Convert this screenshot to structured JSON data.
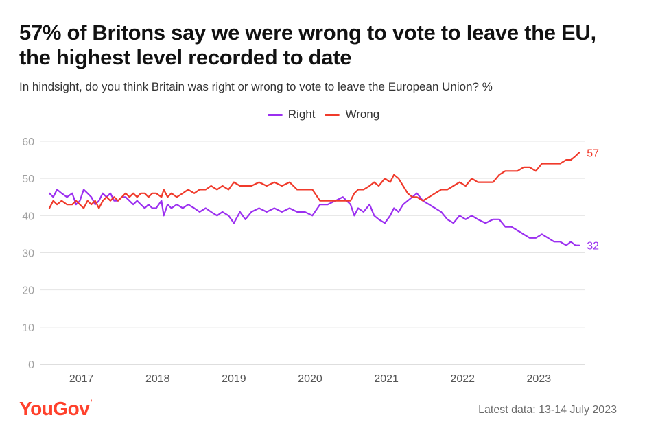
{
  "header": {
    "title": "57% of Britons say we were wrong to vote to leave the EU, the highest level recorded to date",
    "subtitle": "In hindsight, do you think Britain was right or wrong to vote to leave the European Union? %"
  },
  "legend": {
    "right_label": "Right",
    "wrong_label": "Wrong"
  },
  "colors": {
    "right": "#9b2ff0",
    "wrong": "#f03a2b",
    "grid": "#e4e4e4",
    "axis_text": "#a0a0a0"
  },
  "footer": {
    "brand": "YouGov",
    "latest": "Latest data: 13-14 July 2023"
  },
  "chart_data": {
    "type": "line",
    "title": "57% of Britons say we were wrong to vote to leave the EU, the highest level recorded to date",
    "xlabel": "",
    "ylabel": "%",
    "xlim": [
      2016.6,
      2023.62
    ],
    "ylim": [
      0,
      60
    ],
    "yticks": [
      0,
      10,
      20,
      30,
      40,
      50,
      60
    ],
    "xticks": [
      2017,
      2018,
      2019,
      2020,
      2021,
      2022,
      2023
    ],
    "xtick_labels": [
      "2017",
      "2018",
      "2019",
      "2020",
      "2021",
      "2022",
      "2023"
    ],
    "grid": true,
    "legend_position": "top-center",
    "series": [
      {
        "name": "Right",
        "end_label": "32",
        "x": [
          2016.6,
          2016.65,
          2016.7,
          2016.76,
          2016.83,
          2016.9,
          2016.95,
          2017.0,
          2017.05,
          2017.1,
          2017.15,
          2017.2,
          2017.25,
          2017.3,
          2017.35,
          2017.4,
          2017.45,
          2017.5,
          2017.55,
          2017.6,
          2017.65,
          2017.7,
          2017.75,
          2017.8,
          2017.85,
          2017.9,
          2017.95,
          2018.0,
          2018.07,
          2018.1,
          2018.15,
          2018.2,
          2018.27,
          2018.35,
          2018.42,
          2018.5,
          2018.57,
          2018.65,
          2018.72,
          2018.8,
          2018.87,
          2018.95,
          2019.02,
          2019.1,
          2019.17,
          2019.25,
          2019.35,
          2019.45,
          2019.55,
          2019.65,
          2019.75,
          2019.85,
          2019.95,
          2020.05,
          2020.15,
          2020.25,
          2020.35,
          2020.45,
          2020.55,
          2020.6,
          2020.65,
          2020.72,
          2020.8,
          2020.86,
          2020.92,
          2021.0,
          2021.07,
          2021.12,
          2021.18,
          2021.24,
          2021.3,
          2021.36,
          2021.42,
          2021.5,
          2021.58,
          2021.66,
          2021.74,
          2021.82,
          2021.9,
          2021.98,
          2022.06,
          2022.14,
          2022.22,
          2022.32,
          2022.42,
          2022.5,
          2022.58,
          2022.66,
          2022.74,
          2022.82,
          2022.9,
          2022.98,
          2023.06,
          2023.14,
          2023.22,
          2023.3,
          2023.38,
          2023.44,
          2023.5,
          2023.55
        ],
        "values": [
          46,
          45,
          47,
          46,
          45,
          46,
          43,
          44,
          47,
          46,
          45,
          43,
          44,
          46,
          45,
          46,
          44,
          44,
          45,
          45,
          44,
          43,
          44,
          43,
          42,
          43,
          42,
          42,
          44,
          40,
          43,
          42,
          43,
          42,
          43,
          42,
          41,
          42,
          41,
          40,
          41,
          40,
          38,
          41,
          39,
          41,
          42,
          41,
          42,
          41,
          42,
          41,
          41,
          40,
          43,
          43,
          44,
          45,
          43,
          40,
          42,
          41,
          43,
          40,
          39,
          38,
          40,
          42,
          41,
          43,
          44,
          45,
          46,
          44,
          43,
          42,
          41,
          39,
          38,
          40,
          39,
          40,
          39,
          38,
          39,
          39,
          37,
          37,
          36,
          35,
          34,
          34,
          35,
          34,
          33,
          33,
          32,
          33,
          32,
          32
        ]
      },
      {
        "name": "Wrong",
        "end_label": "57",
        "x": [
          2016.6,
          2016.65,
          2016.7,
          2016.76,
          2016.83,
          2016.9,
          2016.95,
          2017.0,
          2017.05,
          2017.1,
          2017.15,
          2017.2,
          2017.25,
          2017.3,
          2017.35,
          2017.4,
          2017.45,
          2017.5,
          2017.55,
          2017.6,
          2017.65,
          2017.7,
          2017.75,
          2017.8,
          2017.85,
          2017.9,
          2017.95,
          2018.0,
          2018.07,
          2018.1,
          2018.15,
          2018.2,
          2018.27,
          2018.35,
          2018.42,
          2018.5,
          2018.57,
          2018.65,
          2018.72,
          2018.8,
          2018.87,
          2018.95,
          2019.02,
          2019.1,
          2019.17,
          2019.25,
          2019.35,
          2019.45,
          2019.55,
          2019.65,
          2019.75,
          2019.85,
          2019.95,
          2020.05,
          2020.15,
          2020.25,
          2020.35,
          2020.45,
          2020.55,
          2020.6,
          2020.65,
          2020.72,
          2020.8,
          2020.86,
          2020.92,
          2021.0,
          2021.07,
          2021.12,
          2021.18,
          2021.24,
          2021.3,
          2021.36,
          2021.42,
          2021.5,
          2021.58,
          2021.66,
          2021.74,
          2021.82,
          2021.9,
          2021.98,
          2022.06,
          2022.14,
          2022.22,
          2022.32,
          2022.42,
          2022.5,
          2022.58,
          2022.66,
          2022.74,
          2022.82,
          2022.9,
          2022.98,
          2023.06,
          2023.14,
          2023.22,
          2023.3,
          2023.38,
          2023.44,
          2023.5,
          2023.55
        ],
        "values": [
          42,
          44,
          43,
          44,
          43,
          43,
          44,
          43,
          42,
          44,
          43,
          44,
          42,
          44,
          45,
          44,
          45,
          44,
          45,
          46,
          45,
          46,
          45,
          46,
          46,
          45,
          46,
          46,
          45,
          47,
          45,
          46,
          45,
          46,
          47,
          46,
          47,
          47,
          48,
          47,
          48,
          47,
          49,
          48,
          48,
          48,
          49,
          48,
          49,
          48,
          49,
          47,
          47,
          47,
          44,
          44,
          44,
          44,
          44,
          46,
          47,
          47,
          48,
          49,
          48,
          50,
          49,
          51,
          50,
          48,
          46,
          45,
          45,
          44,
          45,
          46,
          47,
          47,
          48,
          49,
          48,
          50,
          49,
          49,
          49,
          51,
          52,
          52,
          52,
          53,
          53,
          52,
          54,
          54,
          54,
          54,
          55,
          55,
          56,
          57
        ]
      }
    ]
  }
}
